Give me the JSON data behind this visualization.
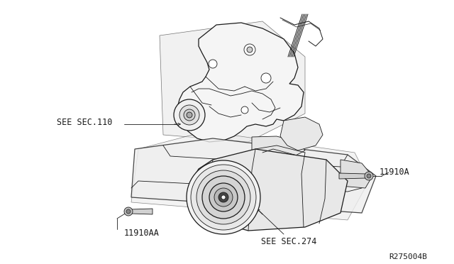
{
  "bg_color": "#ffffff",
  "line_color": "#1a1a1a",
  "ref_code": "R275004B",
  "labels": {
    "see_sec_110": "SEE SEC.110",
    "see_sec_274": "SEE SEC.274",
    "part_11910A": "11910A",
    "part_11910AA": "11910AA"
  },
  "figsize": [
    6.4,
    3.72
  ],
  "dpi": 100,
  "xlim": [
    0,
    640
  ],
  "ylim": [
    0,
    372
  ]
}
